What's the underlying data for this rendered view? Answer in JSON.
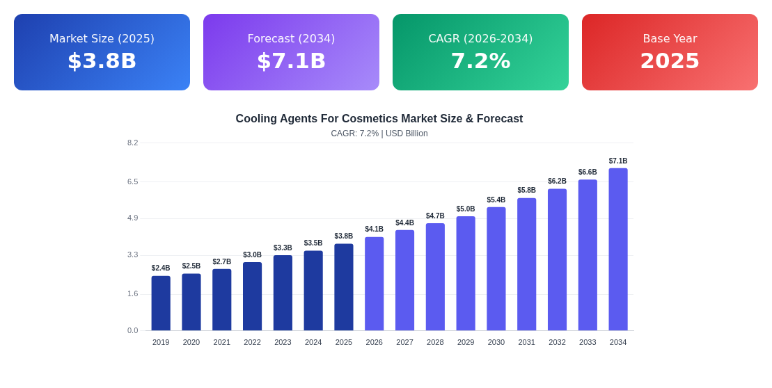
{
  "chart_data": [
    {
      "type": "other",
      "title": "Market Size (2025)",
      "annotations": [
        "$3.8B"
      ]
    },
    {
      "type": "other",
      "title": "Forecast (2034)",
      "annotations": [
        "$7.1B"
      ]
    },
    {
      "type": "other",
      "title": "CAGR (2026-2034)",
      "annotations": [
        "7.2%"
      ]
    },
    {
      "type": "other",
      "title": "Base Year",
      "annotations": [
        "2025"
      ]
    },
    {
      "type": "bar",
      "title": "Cooling Agents For Cosmetics Market Size & Forecast",
      "subtitle": "CAGR: 7.2% | USD Billion",
      "categories": [
        "2019",
        "2020",
        "2021",
        "2022",
        "2023",
        "2024",
        "2025",
        "2026",
        "2027",
        "2028",
        "2029",
        "2030",
        "2031",
        "2032",
        "2033",
        "2034"
      ],
      "values": [
        2.4,
        2.5,
        2.7,
        3.0,
        3.3,
        3.5,
        3.8,
        4.1,
        4.4,
        4.7,
        5.0,
        5.4,
        5.8,
        6.2,
        6.6,
        7.1
      ],
      "value_labels": [
        "$2.4B",
        "$2.5B",
        "$2.7B",
        "$3.0B",
        "$3.3B",
        "$3.5B",
        "$3.8B",
        "$4.1B",
        "$4.4B",
        "$4.7B",
        "$5.0B",
        "$5.4B",
        "$5.8B",
        "$6.2B",
        "$6.6B",
        "$7.1B"
      ],
      "colors": [
        "#1e3a9f",
        "#1e3a9f",
        "#1e3a9f",
        "#1e3a9f",
        "#1e3a9f",
        "#1e3a9f",
        "#1e3a9f",
        "#5b5bf0",
        "#5b5bf0",
        "#5b5bf0",
        "#5b5bf0",
        "#5b5bf0",
        "#5b5bf0",
        "#5b5bf0",
        "#5b5bf0",
        "#5b5bf0"
      ],
      "ylim": [
        0,
        8.2
      ],
      "yticks": [
        {
          "value": 0,
          "label": "0.0"
        },
        1.6,
        3.3,
        4.9,
        6.5,
        8.2
      ],
      "grid": "y",
      "legend": false
    }
  ]
}
